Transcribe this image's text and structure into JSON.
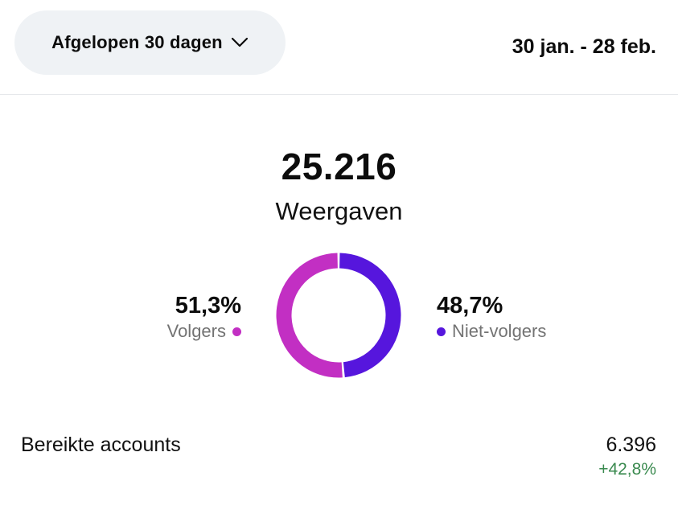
{
  "header": {
    "period_label": "Afgelopen 30 dagen",
    "period_icon": "chevron-down-icon",
    "date_range": "30 jan. - 28 feb."
  },
  "summary": {
    "total": "25.216",
    "label": "Weergaven"
  },
  "breakdown": {
    "followers": {
      "percent_text": "51,3%",
      "label": "Volgers",
      "value": 51.3,
      "color": "#c22fc3"
    },
    "non_followers": {
      "percent_text": "48,7%",
      "label": "Niet-volgers",
      "value": 48.7,
      "color": "#5616dd"
    }
  },
  "metrics": [
    {
      "label": "Bereikte accounts",
      "value": "6.396",
      "change": "+42,8%",
      "change_color": "#3a8a4f"
    }
  ]
}
